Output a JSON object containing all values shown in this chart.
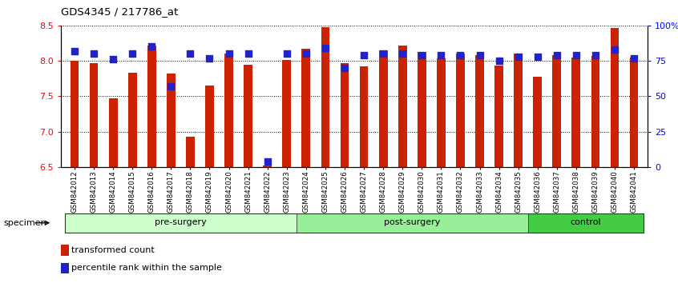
{
  "title": "GDS4345 / 217786_at",
  "samples": [
    "GSM842012",
    "GSM842013",
    "GSM842014",
    "GSM842015",
    "GSM842016",
    "GSM842017",
    "GSM842018",
    "GSM842019",
    "GSM842020",
    "GSM842021",
    "GSM842022",
    "GSM842023",
    "GSM842024",
    "GSM842025",
    "GSM842026",
    "GSM842027",
    "GSM842028",
    "GSM842029",
    "GSM842030",
    "GSM842031",
    "GSM842032",
    "GSM842033",
    "GSM842034",
    "GSM842035",
    "GSM842036",
    "GSM842037",
    "GSM842038",
    "GSM842039",
    "GSM842040",
    "GSM842041"
  ],
  "transformed_count": [
    8.0,
    7.97,
    7.47,
    7.83,
    8.22,
    7.82,
    6.93,
    7.65,
    8.1,
    7.95,
    6.52,
    8.01,
    8.17,
    8.48,
    7.97,
    7.92,
    8.15,
    8.22,
    8.12,
    8.03,
    8.1,
    8.08,
    7.93,
    8.1,
    7.77,
    8.08,
    8.05,
    8.07,
    8.47,
    8.05
  ],
  "percentile_rank": [
    82,
    80,
    76,
    80,
    85,
    57,
    80,
    77,
    80,
    80,
    4,
    80,
    80,
    84,
    70,
    79,
    80,
    80,
    79,
    79,
    79,
    79,
    75,
    78,
    78,
    79,
    79,
    79,
    83,
    77
  ],
  "groups": [
    {
      "label": "pre-surgery",
      "start": 0,
      "end": 12
    },
    {
      "label": "post-surgery",
      "start": 12,
      "end": 24
    },
    {
      "label": "control",
      "start": 24,
      "end": 30
    }
  ],
  "group_colors": [
    "#ccffcc",
    "#99ee99",
    "#44cc44"
  ],
  "ylim_left": [
    6.5,
    8.5
  ],
  "right_ticks": [
    0,
    25,
    50,
    75,
    100
  ],
  "right_tick_labels": [
    "0",
    "25",
    "50",
    "75",
    "100%"
  ],
  "left_ticks": [
    6.5,
    7.0,
    7.5,
    8.0,
    8.5
  ],
  "bar_color": "#cc2200",
  "dot_color": "#2222cc",
  "dot_size": 28,
  "background_color": "#ffffff",
  "specimen_label": "specimen",
  "legend_bar_label": "transformed count",
  "legend_dot_label": "percentile rank within the sample"
}
